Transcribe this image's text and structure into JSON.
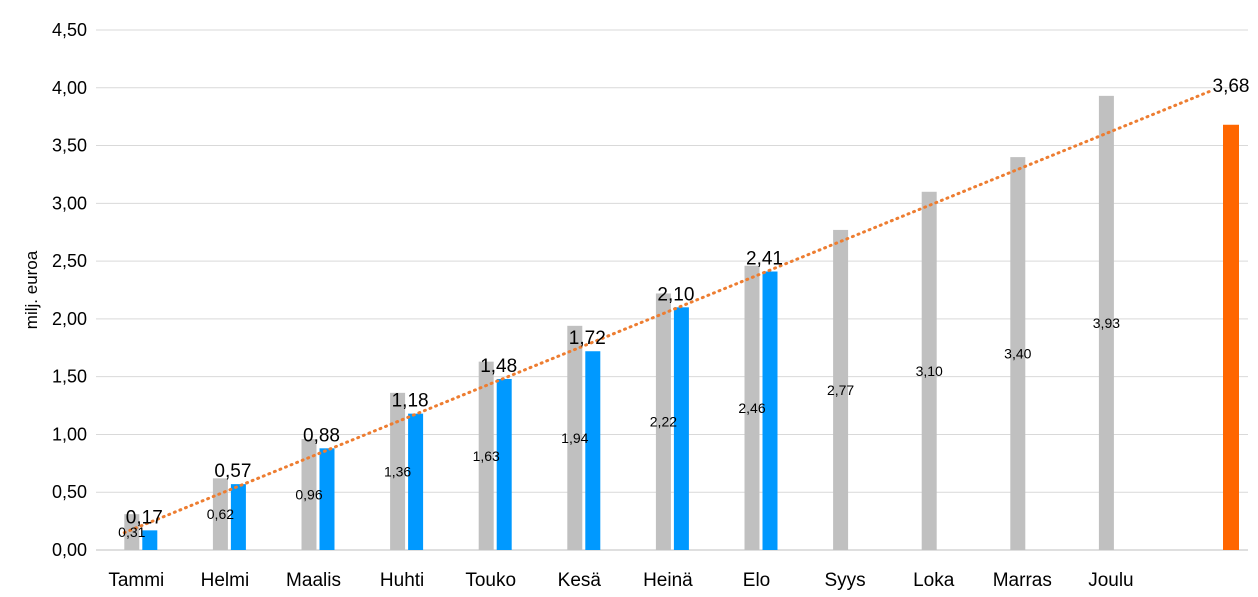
{
  "chart_data": {
    "type": "bar",
    "ylabel": "milj. euroa",
    "ylim": [
      0,
      4.5
    ],
    "yticks": [
      "0,00",
      "0,50",
      "1,00",
      "1,50",
      "2,00",
      "2,50",
      "3,00",
      "3,50",
      "4,00",
      "4,50"
    ],
    "categories": [
      "Tammi",
      "Helmi",
      "Maalis",
      "Huhti",
      "Touko",
      "Kesä",
      "Heinä",
      "Elo",
      "Syys",
      "Loka",
      "Marras",
      "Joulu"
    ],
    "series": [
      {
        "values": [
          0.31,
          0.62,
          0.96,
          1.36,
          1.63,
          1.94,
          2.22,
          2.46,
          2.77,
          3.1,
          3.4,
          3.93
        ],
        "labels": [
          "0,31",
          "0,62",
          "0,96",
          "1,36",
          "1,63",
          "1,94",
          "2,22",
          "2,46",
          "2,77",
          "3,10",
          "3,40",
          "3,93"
        ],
        "color": "#c0c0c0"
      },
      {
        "values": [
          0.17,
          0.57,
          0.88,
          1.18,
          1.48,
          1.72,
          2.1,
          2.41,
          null,
          null,
          null,
          null
        ],
        "labels": [
          "0,17",
          "0,57",
          "0,88",
          "1,18",
          "1,48",
          "1,72",
          "2,10",
          "2,41",
          "",
          "",
          "",
          ""
        ],
        "color": "#0099ff"
      }
    ],
    "forecast": {
      "value": 3.68,
      "label": "3,68",
      "color": "#ff6600"
    },
    "trendline": {
      "style": "dotted",
      "color": "#ed7d31",
      "from": 0.15,
      "to": 3.97
    },
    "grid": true,
    "gridColor": "#d9d9d9"
  }
}
